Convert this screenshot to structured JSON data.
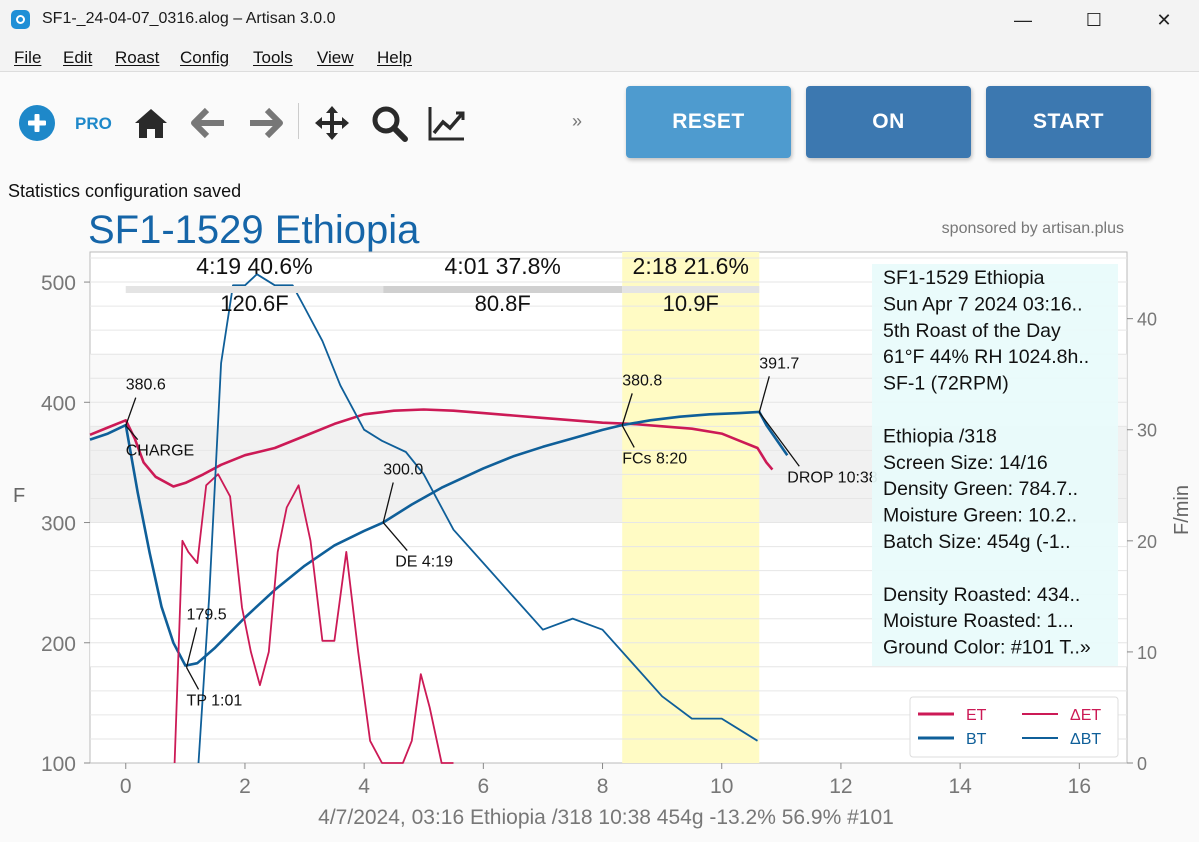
{
  "window": {
    "title": "SF1-_24-04-07_0316.alog – Artisan 3.0.0",
    "minimize_glyph": "—",
    "maximize_glyph": "☐",
    "close_glyph": "✕"
  },
  "menu": [
    "File",
    "Edit",
    "Roast",
    "Config",
    "Tools",
    "View",
    "Help"
  ],
  "toolbar": {
    "pro_label": "PRO",
    "more_label": "»",
    "reset_label": "RESET",
    "on_label": "ON",
    "start_label": "START",
    "icons": [
      "add-circle-icon",
      "home-icon",
      "back-arrow-icon",
      "forward-arrow-icon",
      "pan-icon",
      "zoom-icon",
      "statistics-icon"
    ]
  },
  "status_message": "Statistics configuration saved",
  "colors": {
    "et": "#cc1a56",
    "bt": "#0f5f99",
    "title": "#1565a8",
    "reset_btn": "#4e9bcf",
    "on_btn": "#3c78b0",
    "start_btn": "#3c78b0",
    "fc_phase": "#fffbc4"
  },
  "chart_data": {
    "type": "line",
    "title": "SF1-1529 Ethiopia",
    "sponsor": "sponsored by artisan.plus",
    "ylabel": "F",
    "ylabel_right": "F/min",
    "xlim": [
      -0.6,
      16.8
    ],
    "ylim": [
      100,
      525
    ],
    "ylim_right": [
      0,
      46
    ],
    "x_ticks": [
      0,
      2,
      4,
      6,
      8,
      10,
      12,
      14,
      16
    ],
    "y_ticks": [
      100,
      200,
      300,
      400,
      500
    ],
    "y_ticks_right": [
      0,
      10,
      20,
      30,
      40
    ],
    "phases": [
      {
        "time_pct": "4:19  40.6%",
        "delta": "120.6F",
        "start": 0,
        "end": 4.32
      },
      {
        "time_pct": "4:01  37.8%",
        "delta": "80.8F",
        "start": 4.32,
        "end": 8.33
      },
      {
        "time_pct": "2:18  21.6%",
        "delta": "10.9F",
        "start": 8.33,
        "end": 10.63
      }
    ],
    "events": [
      {
        "name": "CHARGE",
        "value": "380.6",
        "x": 0,
        "y": 380.6
      },
      {
        "name": "TP 1:01",
        "value": "179.5",
        "x": 1.02,
        "y": 179.5
      },
      {
        "name": "DE 4:19",
        "value": "300.0",
        "x": 4.32,
        "y": 300.0
      },
      {
        "name": "FCs 8:20",
        "value": "380.8",
        "x": 8.33,
        "y": 380.8
      },
      {
        "name": "DROP 10:38",
        "value": "391.7",
        "x": 10.63,
        "y": 391.7
      }
    ],
    "series": [
      {
        "name": "ET",
        "axis": "left",
        "x": [
          -0.6,
          -0.3,
          0,
          0.15,
          0.3,
          0.5,
          0.8,
          1.0,
          1.3,
          1.6,
          2.0,
          2.5,
          3.0,
          3.5,
          4.0,
          4.5,
          5.0,
          5.5,
          6.0,
          6.5,
          7.0,
          7.5,
          8.0,
          8.5,
          9.0,
          9.5,
          10.0,
          10.3,
          10.6,
          10.75,
          10.85
        ],
        "values": [
          373,
          379,
          385,
          370,
          350,
          338,
          330,
          333,
          340,
          348,
          356,
          362,
          372,
          382,
          390,
          393,
          394,
          393,
          391,
          389,
          387,
          385,
          383,
          382,
          380,
          378,
          374,
          368,
          362,
          350,
          344
        ]
      },
      {
        "name": "BT",
        "axis": "left",
        "x": [
          -0.6,
          -0.3,
          0,
          0.2,
          0.4,
          0.6,
          0.8,
          1.0,
          1.2,
          1.5,
          2.0,
          2.5,
          3.0,
          3.5,
          4.0,
          4.32,
          4.8,
          5.3,
          6.0,
          6.5,
          7.0,
          7.5,
          8.0,
          8.33,
          8.8,
          9.3,
          9.8,
          10.3,
          10.63,
          10.75,
          11.1
        ],
        "values": [
          369,
          374,
          381,
          325,
          275,
          230,
          200,
          181,
          183,
          196,
          221,
          244,
          264,
          281,
          293,
          300,
          315,
          329,
          345,
          355,
          363,
          370,
          377,
          381,
          385,
          388,
          390,
          391,
          392,
          381,
          356
        ]
      },
      {
        "name": "ΔET",
        "axis": "right",
        "x": [
          0.82,
          0.95,
          1.05,
          1.2,
          1.35,
          1.55,
          1.75,
          1.95,
          2.1,
          2.25,
          2.4,
          2.55,
          2.7,
          2.9,
          3.1,
          3.3,
          3.5,
          3.7,
          3.9,
          4.1,
          4.3,
          4.5,
          4.65,
          4.8,
          4.95,
          5.1,
          5.3,
          5.5
        ],
        "values": [
          -5,
          20,
          19,
          18,
          25,
          26,
          24,
          14,
          10,
          7,
          10,
          19,
          23,
          25,
          20,
          11,
          11,
          19,
          10,
          2,
          0,
          0,
          -2,
          2,
          8,
          5,
          -3,
          -8
        ]
      },
      {
        "name": "ΔBT",
        "axis": "right",
        "x": [
          1.22,
          1.4,
          1.6,
          1.8,
          2.0,
          2.2,
          2.5,
          2.8,
          3.0,
          3.3,
          3.6,
          4.0,
          4.3,
          4.7,
          5.0,
          5.5,
          6.0,
          6.5,
          7.0,
          7.5,
          8.0,
          8.5,
          9.0,
          9.5,
          9.8,
          10.0,
          10.3,
          10.6
        ],
        "values": [
          -5,
          15,
          36,
          43,
          43,
          44,
          43,
          43,
          41,
          38,
          34,
          30,
          29,
          28,
          26,
          21,
          18,
          15,
          12,
          13,
          12,
          9,
          6,
          4,
          4,
          4,
          3,
          2
        ]
      }
    ],
    "legend": [
      {
        "name": "ET",
        "series": "ET"
      },
      {
        "name": "BT",
        "series": "BT"
      },
      {
        "name": "ΔET",
        "series": "ΔET"
      },
      {
        "name": "ΔBT",
        "series": "ΔBT"
      }
    ],
    "legend_position": "bottom-right",
    "info_box": [
      "SF1-1529 Ethiopia",
      "Sun Apr 7 2024 03:16..",
      "5th Roast of the Day",
      "61°F  44% RH 1024.8h..",
      "SF-1 (72RPM)",
      "",
      "Ethiopia /318",
      "Screen Size: 14/16",
      "Density Green: 784.7..",
      "Moisture Green: 10.2..",
      "Batch Size: 454g (-1..",
      "",
      "Density Roasted: 434..",
      "Moisture Roasted: 1...",
      "Ground Color: #101 T..»"
    ],
    "footer": "4/7/2024, 03:16 Ethiopia /318 10:38   454g   -13.2%   56.9%   #101"
  }
}
